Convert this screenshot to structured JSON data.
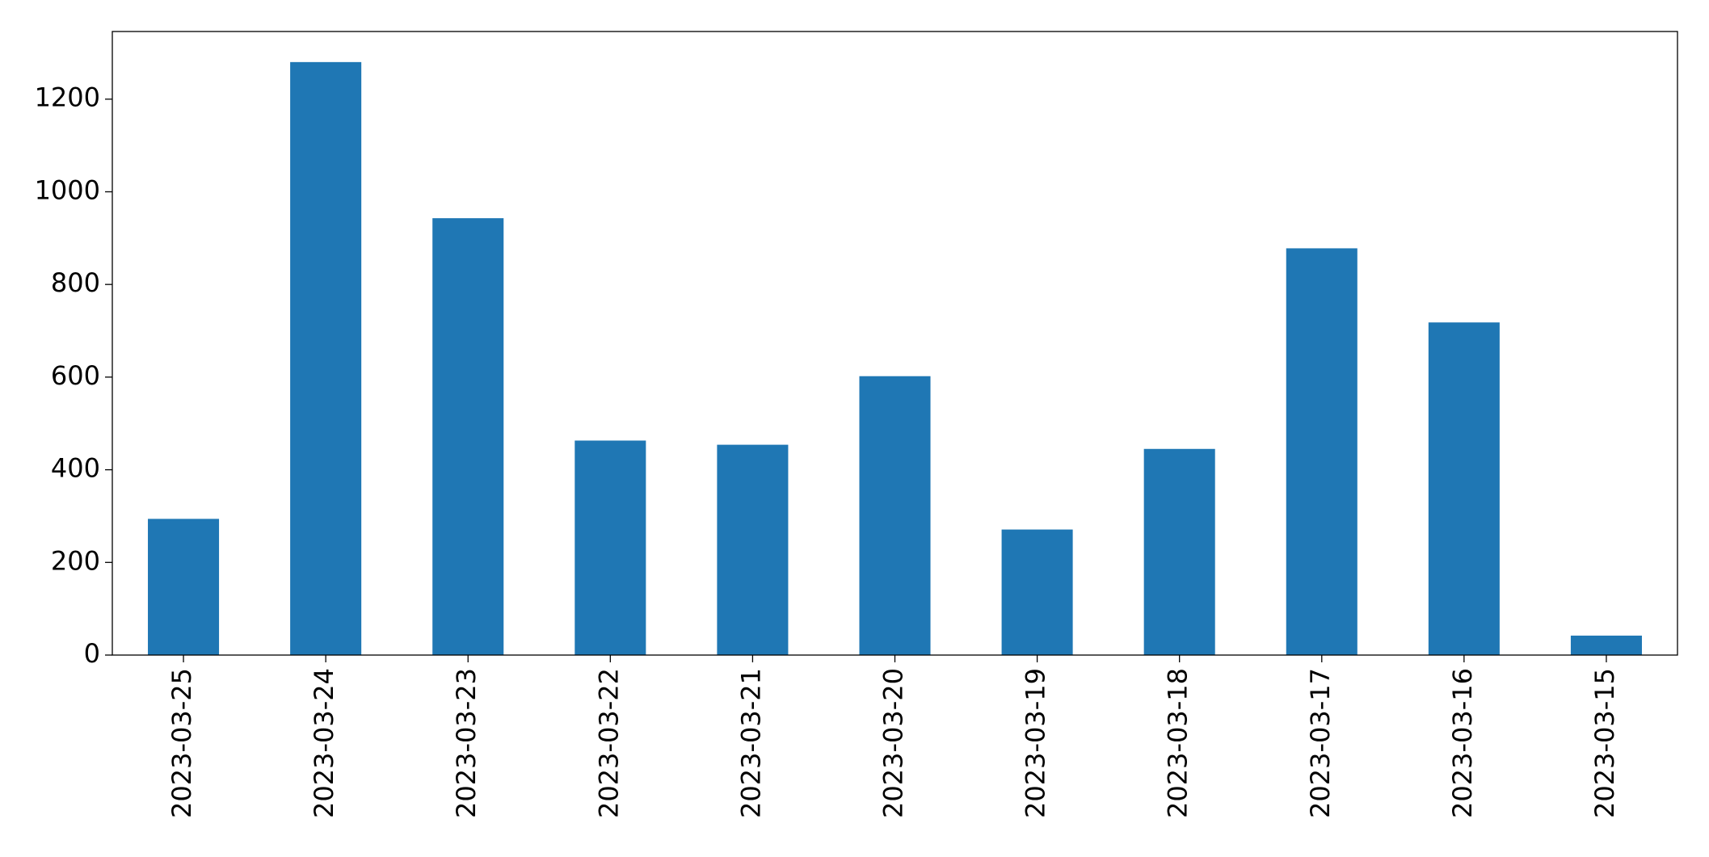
{
  "chart_data": {
    "type": "bar",
    "categories": [
      "2023-03-25",
      "2023-03-24",
      "2023-03-23",
      "2023-03-22",
      "2023-03-21",
      "2023-03-20",
      "2023-03-19",
      "2023-03-18",
      "2023-03-17",
      "2023-03-16",
      "2023-03-15"
    ],
    "values": [
      294,
      1280,
      943,
      463,
      454,
      602,
      271,
      445,
      878,
      718,
      42
    ],
    "color": "#1f77b4",
    "ylim": [
      0,
      1346
    ],
    "yticks": [
      0,
      200,
      400,
      600,
      800,
      1000,
      1200
    ],
    "grid": false
  }
}
